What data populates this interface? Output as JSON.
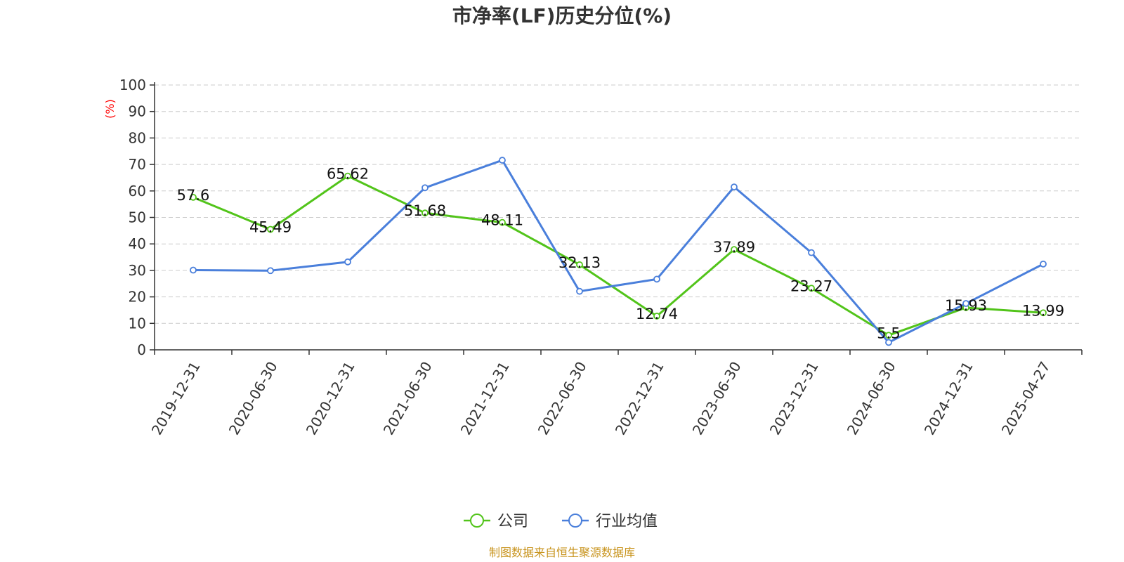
{
  "chart_data": {
    "type": "line",
    "title": "市净率(LF)历史分位(%)",
    "unit_label": "(%)",
    "categories": [
      "2019-12-31",
      "2020-06-30",
      "2020-12-31",
      "2021-06-30",
      "2021-12-31",
      "2022-06-30",
      "2022-12-31",
      "2023-06-30",
      "2023-12-31",
      "2024-06-30",
      "2024-12-31",
      "2025-04-27"
    ],
    "series": [
      {
        "name": "公司",
        "color": "#52c41a",
        "show_labels": true,
        "values": [
          57.6,
          45.49,
          65.62,
          51.68,
          48.11,
          32.13,
          12.74,
          37.89,
          23.27,
          5.5,
          15.93,
          13.99
        ]
      },
      {
        "name": "行业均值",
        "color": "#4a7fdb",
        "show_labels": false,
        "values": [
          30.1,
          29.9,
          33.2,
          61.2,
          71.6,
          22.1,
          26.7,
          61.5,
          36.7,
          2.8,
          17.5,
          32.4
        ]
      }
    ],
    "yticks": [
      0,
      10,
      20,
      30,
      40,
      50,
      60,
      70,
      80,
      90,
      100
    ],
    "ylim": [
      0,
      100
    ],
    "grid": true,
    "legend_position": "bottom-center"
  },
  "source": "制图数据来自恒生聚源数据库"
}
